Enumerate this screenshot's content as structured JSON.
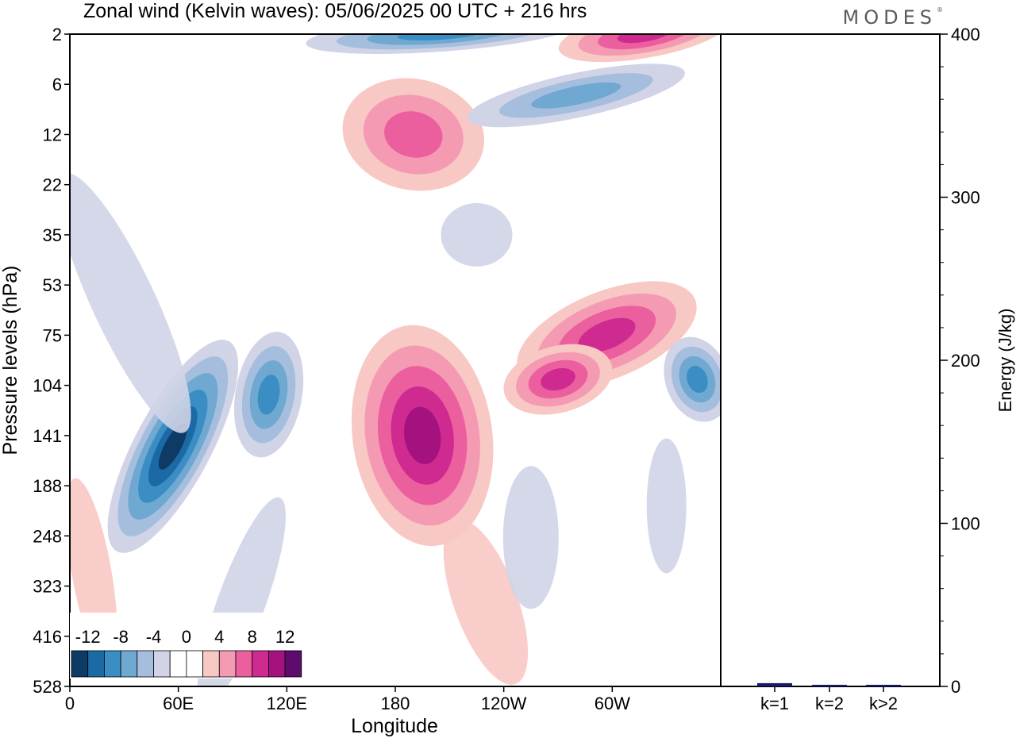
{
  "brand": "MODES",
  "brand_mark": "®",
  "chart_data": [
    {
      "type": "heatmap",
      "title": "Zonal wind (Kelvin waves):  05/06/2025  00 UTC  + 216 hrs",
      "xlabel": "Longitude",
      "ylabel": "Pressure levels (hPa)",
      "x_ticks": [
        "0",
        "60E",
        "120E",
        "180",
        "120W",
        "60W"
      ],
      "y_ticks": [
        "2",
        "6",
        "12",
        "22",
        "35",
        "53",
        "75",
        "104",
        "141",
        "188",
        "248",
        "323",
        "416",
        "528"
      ],
      "colorbar": {
        "labels": [
          "-12",
          "-8",
          "-4",
          "0",
          "4",
          "8",
          "12"
        ],
        "colors": [
          "#0d3b66",
          "#1b6aa5",
          "#3a8ec4",
          "#6fa8d0",
          "#a6bedd",
          "#d0d4e6",
          "#ffffff",
          "#ffffff",
          "#f8c8c4",
          "#f59ab3",
          "#ec5f9f",
          "#cf2a8f",
          "#a3127f",
          "#5e0b6e"
        ]
      },
      "features": [
        {
          "sign": "negative",
          "peak": -14,
          "lon_center": 57,
          "lev_center": 150
        },
        {
          "sign": "negative",
          "peak": -10,
          "lon_center": 110,
          "lev_center": 110
        },
        {
          "sign": "positive",
          "peak": 11,
          "lon_center": 195,
          "lev_center": 141
        },
        {
          "sign": "positive",
          "peak": 10,
          "lon_center": 297,
          "lev_center": 75
        },
        {
          "sign": "positive",
          "peak": 9,
          "lon_center": 270,
          "lev_center": 100
        },
        {
          "sign": "negative",
          "peak": -9,
          "lon_center": 347,
          "lev_center": 100
        },
        {
          "sign": "positive",
          "peak": 7,
          "lon_center": 190,
          "lev_center": 12
        },
        {
          "sign": "negative",
          "peak": -7,
          "lon_center": 280,
          "lev_center": 7
        },
        {
          "sign": "negative",
          "peak": -8,
          "lon_center": 205,
          "lev_center": 2
        },
        {
          "sign": "positive",
          "peak": 9,
          "lon_center": 318,
          "lev_center": 2
        }
      ]
    },
    {
      "type": "bar",
      "ylabel": "Energy (J/kg)",
      "categories": [
        "k=1",
        "k=2",
        "k>2"
      ],
      "values": [
        2,
        1,
        1
      ],
      "ylim": [
        0,
        400
      ],
      "y_ticks": [
        "0",
        "100",
        "200",
        "300",
        "400"
      ],
      "bar_color": "#1a1a6e"
    }
  ]
}
